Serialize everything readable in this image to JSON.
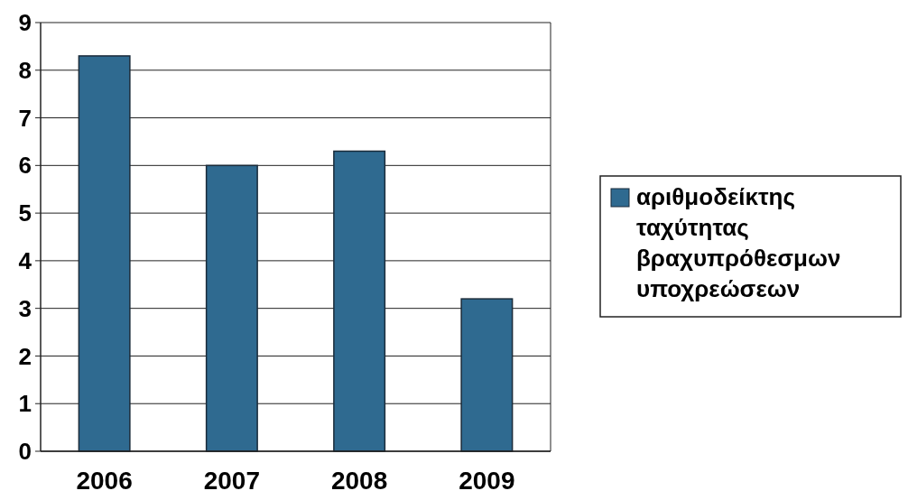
{
  "chart_data": {
    "type": "bar",
    "categories": [
      "2006",
      "2007",
      "2008",
      "2009"
    ],
    "series": [
      {
        "name": "αριθμοδείκτης ταχύτητας βραχυπρόθεσμων υποχρεώσεων",
        "color": "#2f6a90",
        "values": [
          8.3,
          6,
          6.3,
          3.2
        ]
      }
    ],
    "ylim": [
      0,
      9
    ],
    "yticks": [
      0,
      1,
      2,
      3,
      4,
      5,
      6,
      7,
      8,
      9
    ],
    "grid": "y",
    "legend": "right"
  }
}
